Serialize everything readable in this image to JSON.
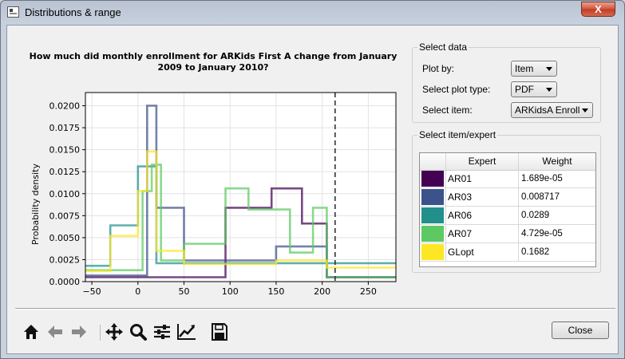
{
  "window": {
    "title": "Distributions & range",
    "close_glyph": "X"
  },
  "select_data": {
    "group_title": "Select data",
    "plot_by_label": "Plot by:",
    "plot_by_value": "Item",
    "plot_type_label": "Select plot type:",
    "plot_type_value": "PDF",
    "item_label": "Select item:",
    "item_value": "ARKidsA Enroll"
  },
  "select_expert": {
    "group_title": "Select item/expert",
    "headers": [
      "Expert",
      "Weight"
    ],
    "rows": [
      {
        "expert": "AR01",
        "weight": "1.689e-05",
        "color": "#440154"
      },
      {
        "expert": "AR03",
        "weight": "0.008717",
        "color": "#3b528b"
      },
      {
        "expert": "AR06",
        "weight": "0.0289",
        "color": "#21908d"
      },
      {
        "expert": "AR07",
        "weight": "4.729e-05",
        "color": "#5dc963"
      },
      {
        "expert": "GLopt",
        "weight": "0.1682",
        "color": "#fde725"
      }
    ]
  },
  "toolbar": {
    "icons": [
      "home-icon",
      "back-icon",
      "forward-icon",
      "pan-icon",
      "zoom-icon",
      "configure-subplots-icon",
      "edit-axis-icon",
      "save-icon"
    ]
  },
  "close_button_label": "Close",
  "chart_data": {
    "type": "line",
    "title_line1": "How much did monthly enrollment for ARKids First A change from January",
    "title_line2": "2009 to January 2010?",
    "ylabel": "Probability density",
    "xlabel": "",
    "xlim": [
      -57,
      280
    ],
    "ylim": [
      0,
      0.0215
    ],
    "xticks": [
      -50,
      0,
      50,
      100,
      150,
      200,
      250
    ],
    "xtick_labels": [
      "−50",
      "0",
      "50",
      "100",
      "150",
      "200",
      "250"
    ],
    "yticks": [
      0,
      0.0025,
      0.005,
      0.0075,
      0.01,
      0.0125,
      0.015,
      0.0175,
      0.02
    ],
    "ytick_labels": [
      "0.0000",
      "0.0025",
      "0.0050",
      "0.0075",
      "0.0100",
      "0.0125",
      "0.0150",
      "0.0175",
      "0.0200"
    ],
    "grid": true,
    "reference_line_x": 214,
    "series": [
      {
        "name": "AR01",
        "color": "#440154",
        "edges": [
          -57,
          70,
          95,
          145,
          178,
          205,
          280
        ],
        "values": [
          0.0005,
          0.0005,
          0.0084,
          0.0106,
          0.0066,
          0.0005
        ]
      },
      {
        "name": "AR03",
        "color": "#3b528b",
        "edges": [
          -57,
          10,
          20,
          50,
          150,
          205,
          280
        ],
        "values": [
          0.0007,
          0.02,
          0.0084,
          0.0024,
          0.004,
          0.0005
        ]
      },
      {
        "name": "AR06",
        "color": "#21908d",
        "edges": [
          -57,
          -30,
          0,
          20,
          280
        ],
        "values": [
          0.0018,
          0.0064,
          0.0131,
          0.0021
        ]
      },
      {
        "name": "AR07",
        "color": "#5dc963",
        "edges": [
          -57,
          5,
          15,
          25,
          50,
          95,
          120,
          165,
          190,
          205,
          280
        ],
        "values": [
          0.0013,
          0.0103,
          0.0133,
          0.0024,
          0.0043,
          0.0106,
          0.0082,
          0.0033,
          0.0084,
          0.0005
        ]
      },
      {
        "name": "GLopt",
        "color": "#fde725",
        "edges": [
          -57,
          -30,
          0,
          10,
          20,
          50,
          150,
          205,
          280
        ],
        "values": [
          0.0012,
          0.0052,
          0.0103,
          0.0148,
          0.0035,
          0.002,
          0.0024,
          0.0016
        ]
      }
    ]
  }
}
